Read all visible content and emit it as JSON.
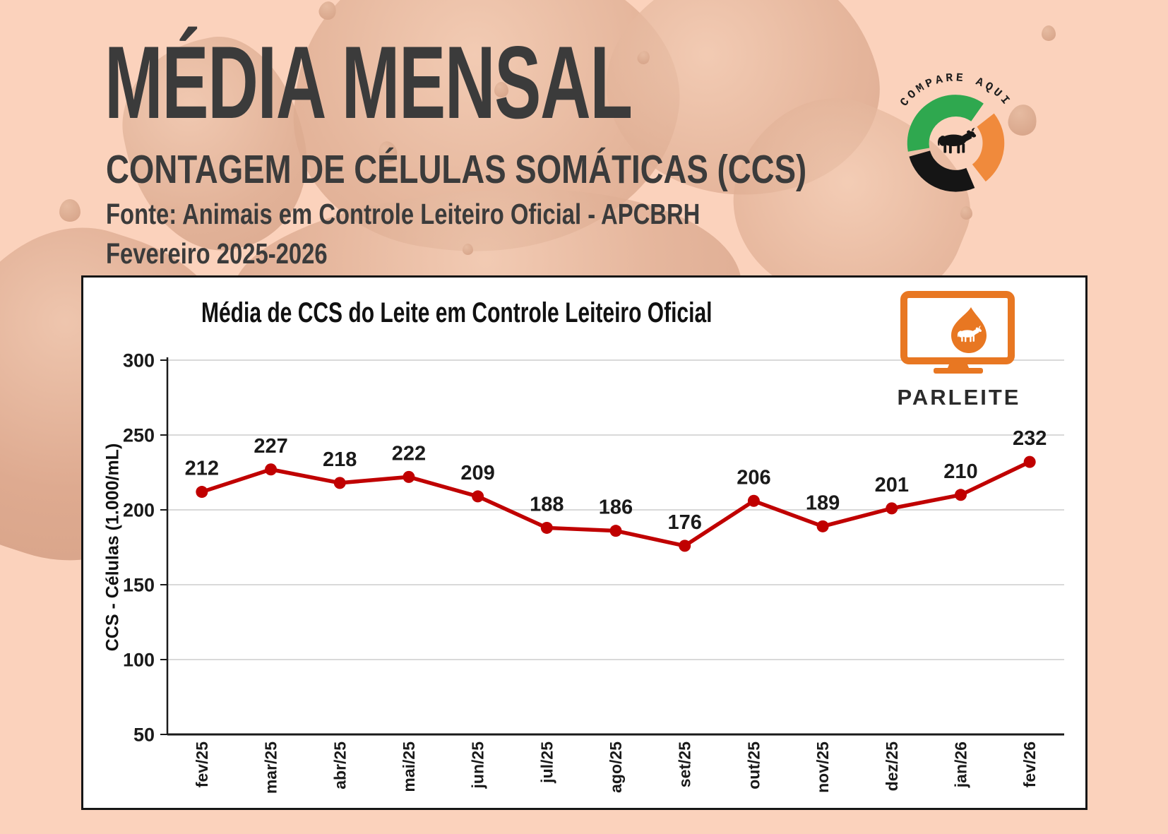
{
  "header": {
    "title": "MÉDIA MENSAL",
    "subtitle": "CONTAGEM DE CÉLULAS SOMÁTICAS (CCS)",
    "source": "Fonte: Animais em Controle Leiteiro Oficial - APCBRH",
    "period": "Fevereiro 2025-2026"
  },
  "logos": {
    "compare_aqui": {
      "text": "COMPARE AQUI",
      "colors": {
        "green": "#2FA84F",
        "black": "#151515",
        "orange": "#F08A3C"
      }
    },
    "parleite": {
      "text": "PARLEITE",
      "color": "#E87722"
    }
  },
  "chart_data": {
    "type": "line",
    "title": "Média de CCS do Leite em Controle Leiteiro Oficial",
    "xlabel": "",
    "ylabel": "CCS - Células (1.000/mL)",
    "categories": [
      "fev/25",
      "mar/25",
      "abr/25",
      "mai/25",
      "jun/25",
      "jul/25",
      "ago/25",
      "set/25",
      "out/25",
      "nov/25",
      "dez/25",
      "jan/26",
      "fev/26"
    ],
    "series": [
      {
        "name": "CCS",
        "color": "#C00000",
        "values": [
          212,
          227,
          218,
          222,
          209,
          188,
          186,
          176,
          206,
          189,
          201,
          210,
          232
        ]
      }
    ],
    "data_labels": true,
    "ylim": [
      50,
      300
    ],
    "yticks": [
      50,
      100,
      150,
      200,
      250,
      300
    ],
    "grid": true,
    "legend_position": "none"
  },
  "colors": {
    "background": "#FBD2BC",
    "splash": "#DCAB90",
    "panel": "#FFFFFF",
    "header_text": "#3B3B3B",
    "line": "#C00000",
    "gridline": "#D9D9D9",
    "axis": "#1A1A1A"
  }
}
